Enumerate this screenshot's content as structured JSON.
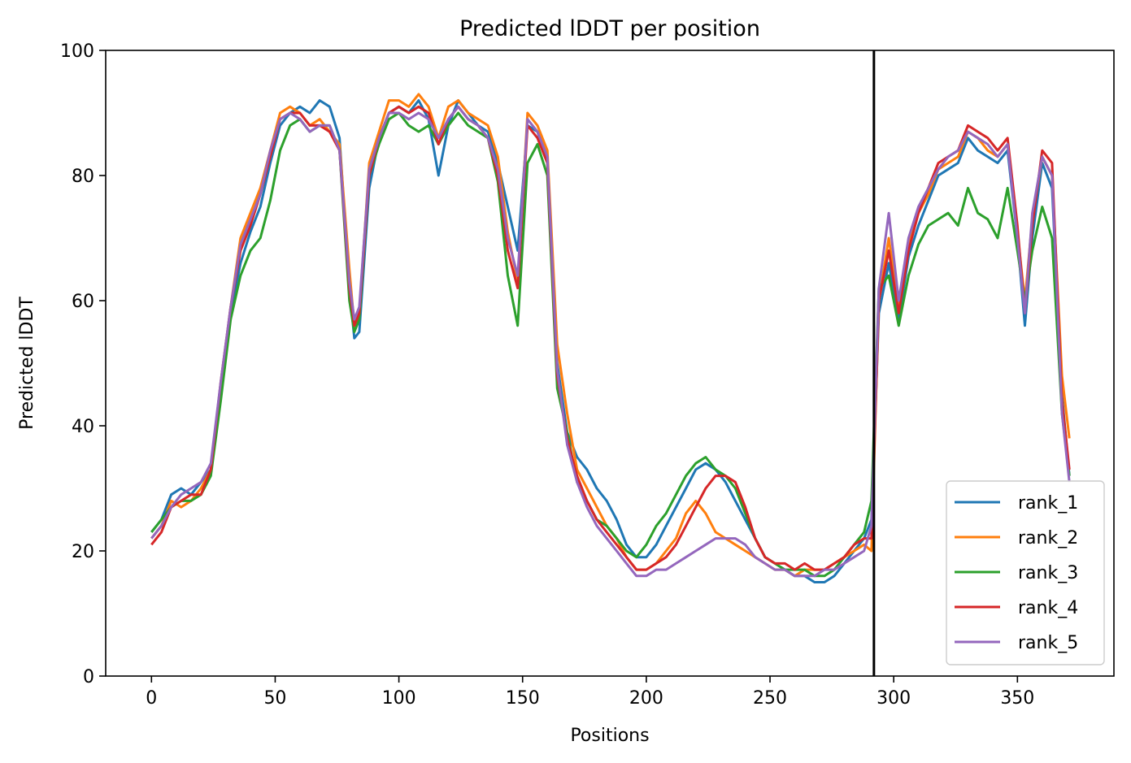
{
  "chart_data": {
    "type": "line",
    "title": "Predicted lDDT per position",
    "xlabel": "Positions",
    "ylabel": "Predicted lDDT",
    "xlim": [
      -18.5,
      389
    ],
    "ylim": [
      0,
      100
    ],
    "xticks": [
      0,
      50,
      100,
      150,
      200,
      250,
      300,
      350
    ],
    "yticks": [
      0,
      20,
      40,
      60,
      80,
      100
    ],
    "grid": false,
    "legend_position": "lower-right",
    "annotations": [
      {
        "type": "vline",
        "x": 292,
        "color": "#000000"
      }
    ],
    "series": [
      {
        "name": "rank_1",
        "color": "#1f77b4",
        "x": [
          0,
          4,
          8,
          12,
          16,
          20,
          24,
          28,
          32,
          36,
          40,
          44,
          48,
          52,
          56,
          60,
          64,
          68,
          72,
          76,
          80,
          82,
          84,
          88,
          92,
          96,
          100,
          104,
          108,
          112,
          116,
          120,
          124,
          128,
          132,
          136,
          140,
          144,
          148,
          152,
          156,
          160,
          164,
          168,
          172,
          176,
          180,
          184,
          188,
          192,
          196,
          200,
          204,
          208,
          212,
          216,
          220,
          224,
          228,
          232,
          236,
          240,
          244,
          248,
          252,
          256,
          260,
          264,
          268,
          272,
          276,
          280,
          284,
          288,
          291,
          294,
          298,
          302,
          306,
          310,
          314,
          318,
          322,
          326,
          330,
          334,
          338,
          342,
          346,
          350,
          353,
          356,
          360,
          364,
          368,
          371
        ],
        "y": [
          23,
          25,
          29,
          30,
          29,
          31,
          33,
          45,
          58,
          66,
          71,
          75,
          82,
          88,
          90,
          91,
          90,
          92,
          91,
          86,
          62,
          54,
          55,
          78,
          86,
          90,
          91,
          90,
          92,
          89,
          80,
          88,
          92,
          90,
          88,
          87,
          82,
          75,
          68,
          88,
          87,
          82,
          50,
          39,
          35,
          33,
          30,
          28,
          25,
          21,
          19,
          19,
          21,
          24,
          27,
          30,
          33,
          34,
          33,
          31,
          28,
          25,
          22,
          19,
          18,
          17,
          16,
          16,
          15,
          15,
          16,
          18,
          20,
          22,
          25,
          58,
          66,
          57,
          67,
          72,
          76,
          80,
          81,
          82,
          86,
          84,
          83,
          82,
          84,
          70,
          56,
          70,
          82,
          78,
          45,
          32
        ]
      },
      {
        "name": "rank_2",
        "color": "#ff7f0e",
        "x": [
          0,
          4,
          8,
          12,
          16,
          20,
          24,
          28,
          32,
          36,
          40,
          44,
          48,
          52,
          56,
          60,
          64,
          68,
          72,
          76,
          80,
          82,
          84,
          88,
          92,
          96,
          100,
          104,
          108,
          112,
          116,
          120,
          124,
          128,
          132,
          136,
          140,
          144,
          148,
          152,
          156,
          160,
          164,
          168,
          172,
          176,
          180,
          184,
          188,
          192,
          196,
          200,
          204,
          208,
          212,
          216,
          220,
          224,
          228,
          232,
          236,
          240,
          244,
          248,
          252,
          256,
          260,
          264,
          268,
          272,
          276,
          280,
          284,
          288,
          291,
          294,
          298,
          302,
          306,
          310,
          314,
          318,
          322,
          326,
          330,
          334,
          338,
          342,
          346,
          350,
          353,
          356,
          360,
          364,
          368,
          371
        ],
        "y": [
          22,
          24,
          28,
          27,
          28,
          30,
          33,
          46,
          59,
          70,
          74,
          78,
          84,
          90,
          91,
          90,
          88,
          89,
          87,
          85,
          65,
          56,
          58,
          82,
          87,
          92,
          92,
          91,
          93,
          91,
          86,
          91,
          92,
          90,
          89,
          88,
          83,
          71,
          63,
          90,
          88,
          84,
          53,
          42,
          33,
          30,
          27,
          24,
          22,
          19,
          17,
          17,
          18,
          20,
          22,
          26,
          28,
          26,
          23,
          22,
          21,
          20,
          19,
          18,
          17,
          17,
          16,
          17,
          17,
          17,
          18,
          19,
          20,
          21,
          20,
          60,
          70,
          59,
          69,
          74,
          77,
          81,
          82,
          83,
          87,
          86,
          84,
          83,
          85,
          71,
          60,
          73,
          83,
          80,
          48,
          38
        ]
      },
      {
        "name": "rank_3",
        "color": "#2ca02c",
        "x": [
          0,
          4,
          8,
          12,
          16,
          20,
          24,
          28,
          32,
          36,
          40,
          44,
          48,
          52,
          56,
          60,
          64,
          68,
          72,
          76,
          80,
          82,
          84,
          88,
          92,
          96,
          100,
          104,
          108,
          112,
          116,
          120,
          124,
          128,
          132,
          136,
          140,
          144,
          148,
          152,
          156,
          160,
          164,
          168,
          172,
          176,
          180,
          184,
          188,
          192,
          196,
          200,
          204,
          208,
          212,
          216,
          220,
          224,
          228,
          232,
          236,
          240,
          244,
          248,
          252,
          256,
          260,
          264,
          268,
          272,
          276,
          280,
          284,
          288,
          291,
          294,
          298,
          302,
          306,
          310,
          314,
          318,
          322,
          326,
          330,
          334,
          338,
          342,
          346,
          350,
          353,
          356,
          360,
          364,
          368,
          371
        ],
        "y": [
          23,
          25,
          27,
          28,
          28,
          29,
          32,
          44,
          57,
          64,
          68,
          70,
          76,
          84,
          88,
          89,
          87,
          88,
          88,
          84,
          60,
          55,
          57,
          80,
          85,
          89,
          90,
          88,
          87,
          88,
          85,
          88,
          90,
          88,
          87,
          86,
          79,
          64,
          56,
          82,
          85,
          80,
          46,
          39,
          31,
          28,
          25,
          24,
          22,
          20,
          19,
          21,
          24,
          26,
          29,
          32,
          34,
          35,
          33,
          32,
          30,
          26,
          22,
          19,
          18,
          17,
          17,
          17,
          16,
          16,
          17,
          19,
          21,
          23,
          28,
          62,
          64,
          56,
          64,
          69,
          72,
          73,
          74,
          72,
          78,
          74,
          73,
          70,
          78,
          68,
          60,
          68,
          75,
          70,
          42,
          32
        ]
      },
      {
        "name": "rank_4",
        "color": "#d62728",
        "x": [
          0,
          4,
          8,
          12,
          16,
          20,
          24,
          28,
          32,
          36,
          40,
          44,
          48,
          52,
          56,
          60,
          64,
          68,
          72,
          76,
          80,
          82,
          84,
          88,
          92,
          96,
          100,
          104,
          108,
          112,
          116,
          120,
          124,
          128,
          132,
          136,
          140,
          144,
          148,
          152,
          156,
          160,
          164,
          168,
          172,
          176,
          180,
          184,
          188,
          192,
          196,
          200,
          204,
          208,
          212,
          216,
          220,
          224,
          228,
          232,
          236,
          240,
          244,
          248,
          252,
          256,
          260,
          264,
          268,
          272,
          276,
          280,
          284,
          288,
          291,
          294,
          298,
          302,
          306,
          310,
          314,
          318,
          322,
          326,
          330,
          334,
          338,
          342,
          346,
          350,
          353,
          356,
          360,
          364,
          368,
          371
        ],
        "y": [
          21,
          23,
          27,
          28,
          29,
          29,
          33,
          47,
          59,
          68,
          72,
          77,
          83,
          89,
          90,
          90,
          88,
          88,
          87,
          84,
          62,
          56,
          58,
          80,
          86,
          90,
          91,
          90,
          91,
          90,
          85,
          89,
          91,
          89,
          88,
          86,
          80,
          68,
          62,
          88,
          86,
          82,
          48,
          38,
          32,
          28,
          25,
          23,
          21,
          19,
          17,
          17,
          18,
          19,
          21,
          24,
          27,
          30,
          32,
          32,
          31,
          27,
          22,
          19,
          18,
          18,
          17,
          18,
          17,
          17,
          18,
          19,
          21,
          22,
          22,
          60,
          68,
          58,
          68,
          74,
          78,
          82,
          83,
          84,
          88,
          87,
          86,
          84,
          86,
          72,
          58,
          72,
          84,
          82,
          44,
          33
        ]
      },
      {
        "name": "rank_5",
        "color": "#9467bd",
        "x": [
          0,
          4,
          8,
          12,
          16,
          20,
          24,
          28,
          32,
          36,
          40,
          44,
          48,
          52,
          56,
          60,
          64,
          68,
          72,
          76,
          80,
          82,
          84,
          88,
          92,
          96,
          100,
          104,
          108,
          112,
          116,
          120,
          124,
          128,
          132,
          136,
          140,
          144,
          148,
          152,
          156,
          160,
          164,
          168,
          172,
          176,
          180,
          184,
          188,
          192,
          196,
          200,
          204,
          208,
          212,
          216,
          220,
          224,
          228,
          232,
          236,
          240,
          244,
          248,
          252,
          256,
          260,
          264,
          268,
          272,
          276,
          280,
          284,
          288,
          291,
          294,
          298,
          302,
          306,
          310,
          314,
          318,
          322,
          326,
          330,
          334,
          338,
          342,
          346,
          350,
          353,
          356,
          360,
          364,
          368,
          371
        ],
        "y": [
          22,
          24,
          27,
          29,
          30,
          31,
          34,
          47,
          59,
          69,
          73,
          77,
          84,
          89,
          90,
          89,
          87,
          88,
          88,
          84,
          63,
          57,
          59,
          81,
          86,
          90,
          90,
          89,
          90,
          89,
          86,
          89,
          91,
          89,
          88,
          86,
          81,
          70,
          64,
          89,
          87,
          83,
          49,
          37,
          31,
          27,
          24,
          22,
          20,
          18,
          16,
          16,
          17,
          17,
          18,
          19,
          20,
          21,
          22,
          22,
          22,
          21,
          19,
          18,
          17,
          17,
          16,
          16,
          16,
          17,
          17,
          18,
          19,
          20,
          24,
          62,
          74,
          60,
          70,
          75,
          78,
          81,
          83,
          84,
          87,
          86,
          85,
          83,
          85,
          70,
          58,
          74,
          83,
          80,
          42,
          31
        ]
      }
    ]
  }
}
